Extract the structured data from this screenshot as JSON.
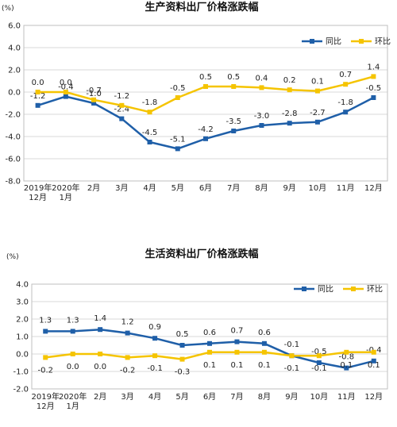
{
  "chart_data": [
    {
      "type": "line",
      "title": "生产资料出厂价格涨跌幅",
      "unit": "(%)",
      "categories": [
        [
          "2019年",
          "12月"
        ],
        [
          "2020年",
          "1月"
        ],
        [
          "2月"
        ],
        [
          "3月"
        ],
        [
          "4月"
        ],
        [
          "5月"
        ],
        [
          "6月"
        ],
        [
          "7月"
        ],
        [
          "8月"
        ],
        [
          "9月"
        ],
        [
          "10月"
        ],
        [
          "11月"
        ],
        [
          "12月"
        ]
      ],
      "ylim": [
        -8.0,
        6.0
      ],
      "yticks": [
        "-8.0",
        "-6.0",
        "-4.0",
        "-2.0",
        "0.0",
        "2.0",
        "4.0",
        "6.0"
      ],
      "grid": true,
      "legend_position": "top-right",
      "series": [
        {
          "name": "同比",
          "color": "#1f5fa8",
          "values": [
            -1.2,
            -0.4,
            -1.0,
            -2.4,
            -4.5,
            -5.1,
            -4.2,
            -3.5,
            -3.0,
            -2.8,
            -2.7,
            -1.8,
            -0.5
          ],
          "labels": [
            "-1.2",
            "-0.4",
            "-1.0",
            "-2.4",
            "-4.5",
            "-5.1",
            "-4.2",
            "-3.5",
            "-3.0",
            "-2.8",
            "-2.7",
            "-1.8",
            "-0.5"
          ]
        },
        {
          "name": "环比",
          "color": "#f5c400",
          "values": [
            0.0,
            0.0,
            -0.7,
            -1.2,
            -1.8,
            -0.5,
            0.5,
            0.5,
            0.4,
            0.2,
            0.1,
            0.7,
            1.4
          ],
          "labels": [
            "0.0",
            "0.0",
            "-0.7",
            "-1.2",
            "-1.8",
            "-0.5",
            "0.5",
            "0.5",
            "0.4",
            "0.2",
            "0.1",
            "0.7",
            "1.4"
          ]
        }
      ]
    },
    {
      "type": "line",
      "title": "生活资料出厂价格涨跌幅",
      "unit": "(%)",
      "categories": [
        [
          "2019年",
          "12月"
        ],
        [
          "2020年",
          "1月"
        ],
        [
          "2月"
        ],
        [
          "3月"
        ],
        [
          "4月"
        ],
        [
          "5月"
        ],
        [
          "6月"
        ],
        [
          "7月"
        ],
        [
          "8月"
        ],
        [
          "9月"
        ],
        [
          "10月"
        ],
        [
          "11月"
        ],
        [
          "12月"
        ]
      ],
      "ylim": [
        -2.0,
        4.0
      ],
      "yticks": [
        "-2.0",
        "-1.0",
        "0.0",
        "1.0",
        "2.0",
        "3.0",
        "4.0"
      ],
      "grid": true,
      "legend_position": "top-right",
      "series": [
        {
          "name": "同比",
          "color": "#1f5fa8",
          "values": [
            1.3,
            1.3,
            1.4,
            1.2,
            0.9,
            0.5,
            0.6,
            0.7,
            0.6,
            -0.1,
            -0.5,
            -0.8,
            -0.4
          ],
          "labels": [
            "1.3",
            "1.3",
            "1.4",
            "1.2",
            "0.9",
            "0.5",
            "0.6",
            "0.7",
            "0.6",
            "-0.1",
            "-0.5",
            "-0.8",
            "-0.4"
          ]
        },
        {
          "name": "环比",
          "color": "#f5c400",
          "values": [
            -0.2,
            0.0,
            0.0,
            -0.2,
            -0.1,
            -0.3,
            0.1,
            0.1,
            0.1,
            -0.1,
            -0.1,
            0.1,
            0.1
          ],
          "labels": [
            "-0.2",
            "0.0",
            "0.0",
            "-0.2",
            "-0.1",
            "-0.3",
            "0.1",
            "0.1",
            "0.1",
            "-0.1",
            "-0.1",
            "0.1",
            "0.1"
          ]
        }
      ]
    }
  ]
}
